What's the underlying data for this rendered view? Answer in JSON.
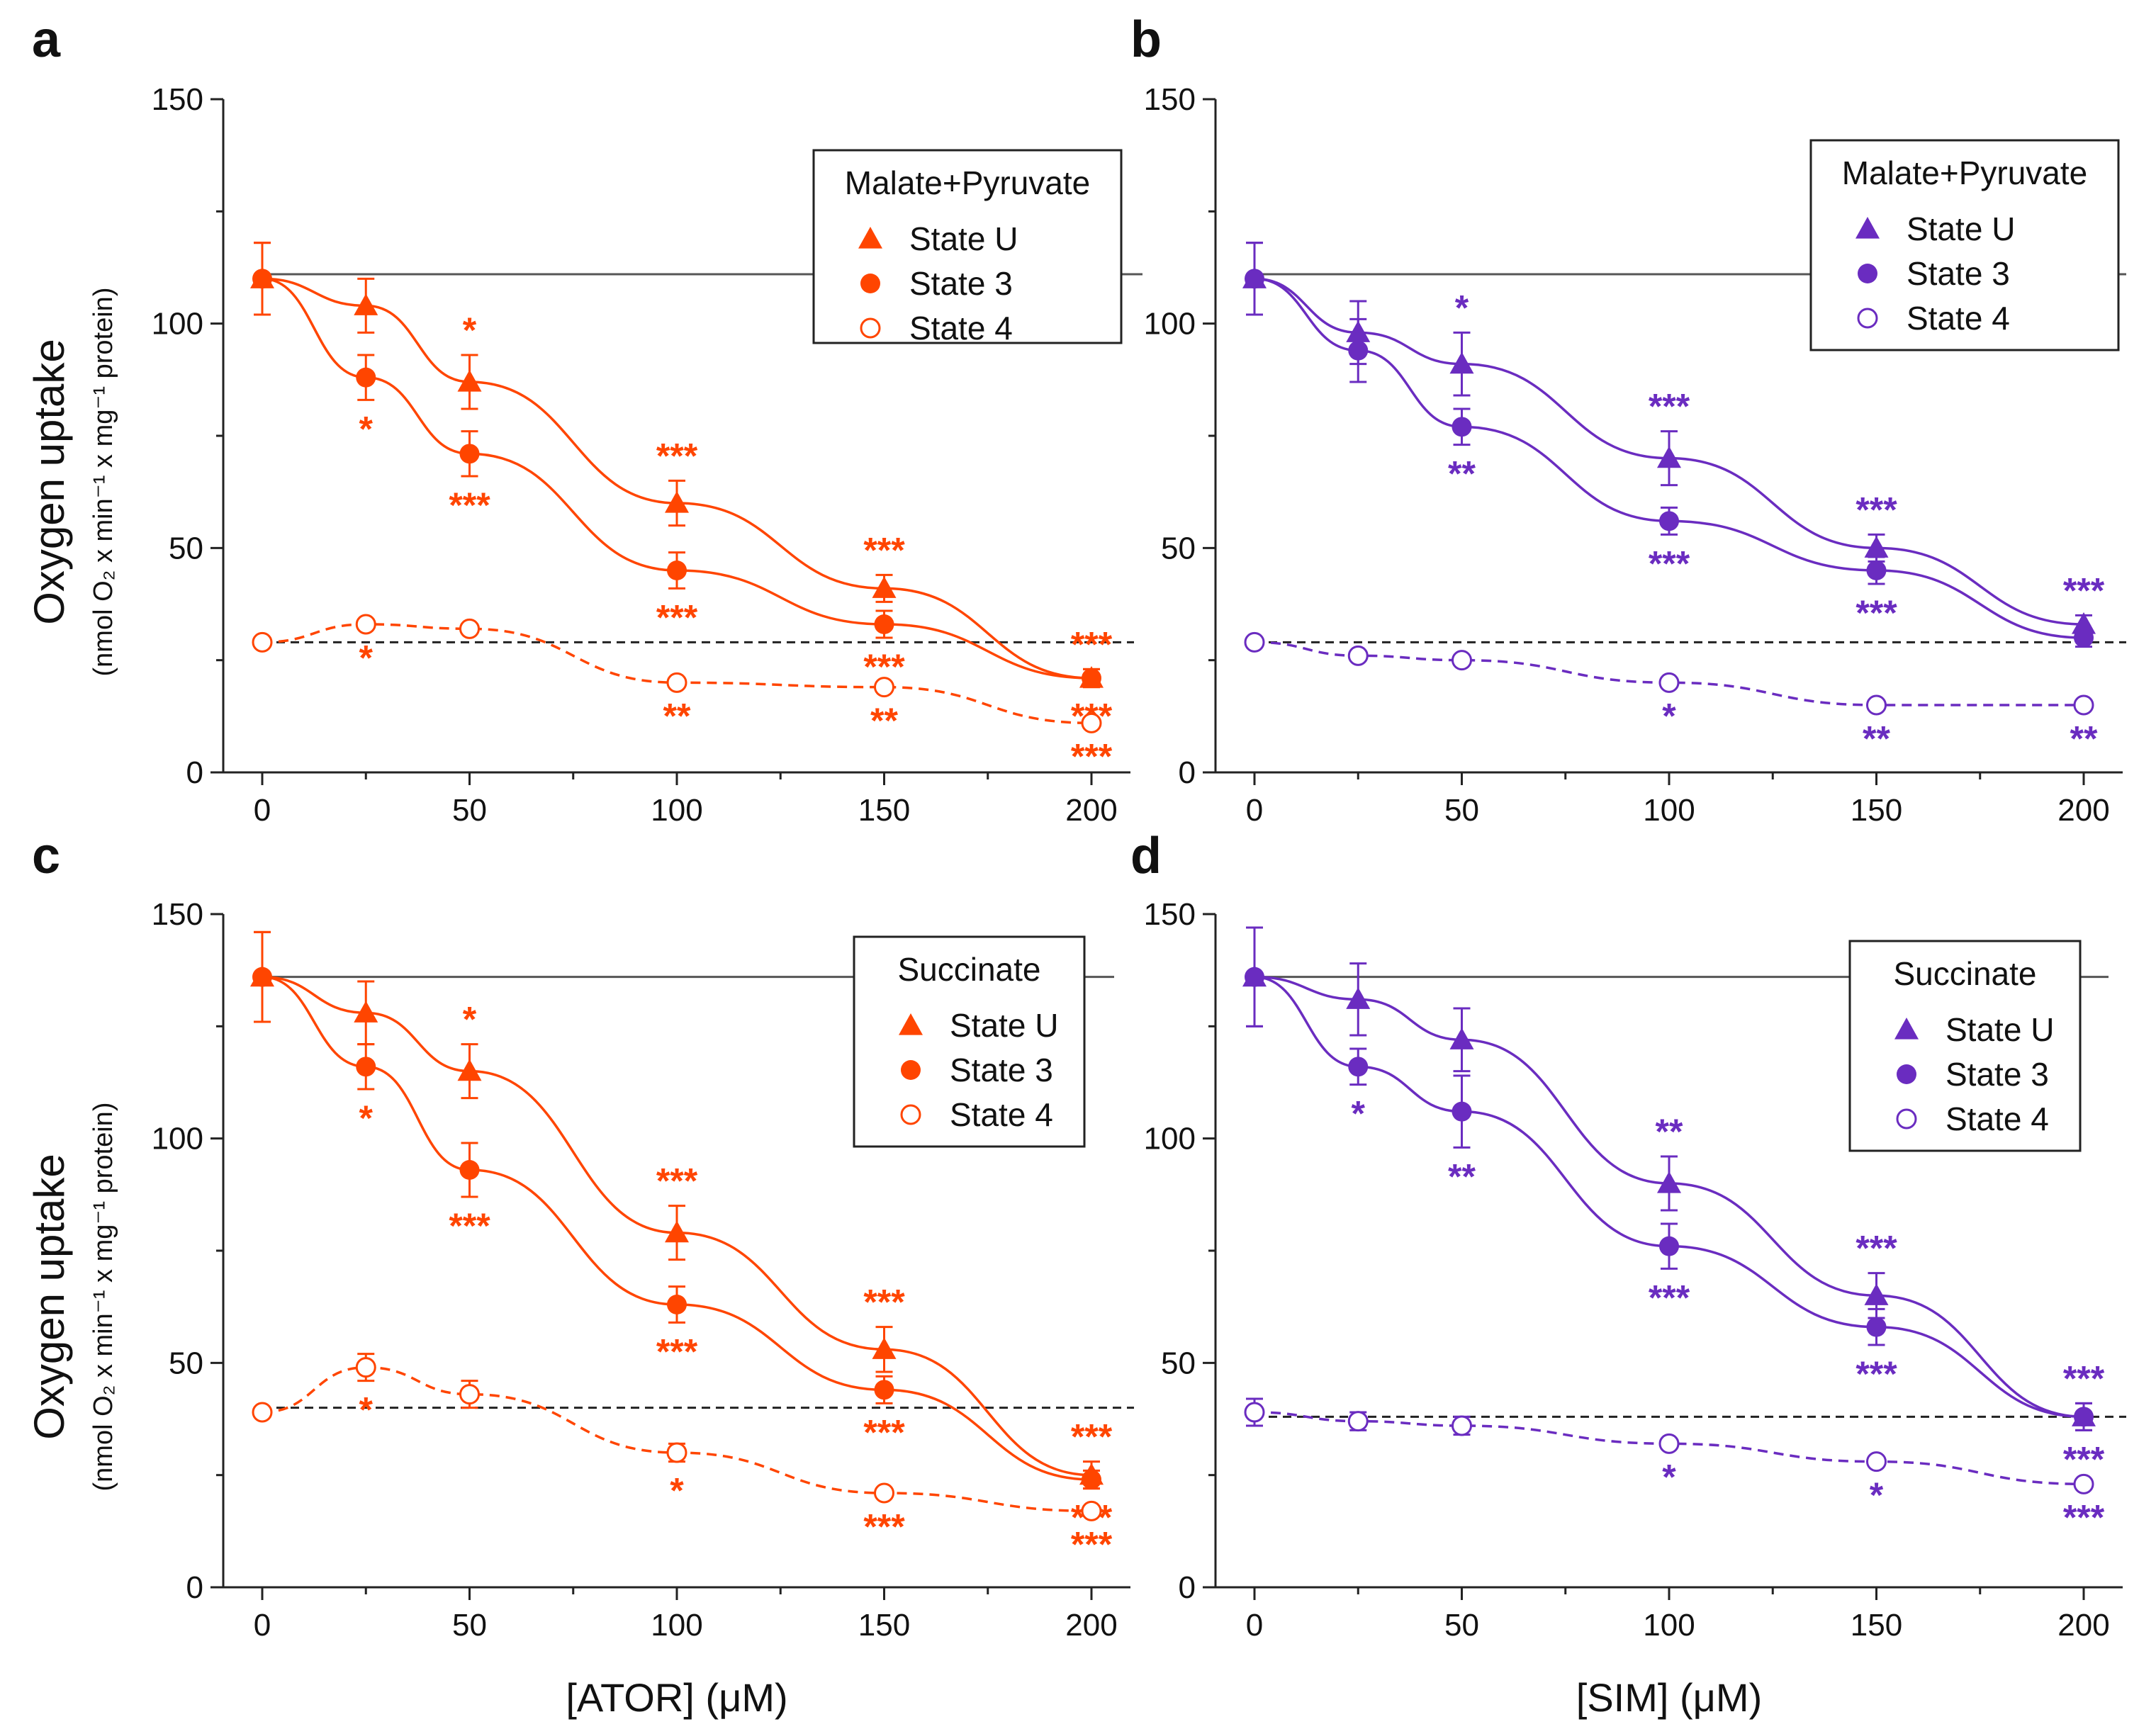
{
  "figure": {
    "ylabel_main": "Oxygen uptake",
    "ylabel_sub": "(nmol O₂ x min⁻¹ x mg⁻¹ protein)"
  },
  "chart_data": [
    {
      "panel": "a",
      "type": "line",
      "color": "#ff4500",
      "xlabel": "[ATOR] (μM)",
      "ylim": [
        0,
        150
      ],
      "yticks": [
        0,
        50,
        100,
        150
      ],
      "x": [
        0,
        25,
        50,
        100,
        150,
        200
      ],
      "xticks": [
        0,
        50,
        100,
        150,
        200
      ],
      "legend_title": "Malate+Pyruvate",
      "reference_line": 111,
      "state4_baseline": 29,
      "series": [
        {
          "name": "State U",
          "marker": "triangle",
          "values": [
            110,
            104,
            87,
            60,
            41,
            21
          ],
          "errors": [
            8,
            6,
            6,
            5,
            3,
            2
          ],
          "stars": [
            "",
            "",
            "*",
            "***",
            "***",
            "***"
          ],
          "star_pos": [
            "",
            "",
            "above",
            "above",
            "above",
            "above"
          ]
        },
        {
          "name": "State 3",
          "marker": "circle",
          "values": [
            110,
            88,
            71,
            45,
            33,
            21
          ],
          "errors": [
            8,
            5,
            5,
            4,
            3,
            2
          ],
          "stars": [
            "",
            "*",
            "***",
            "***",
            "***",
            "***"
          ],
          "star_pos": [
            "",
            "below",
            "below",
            "below",
            "below",
            "below"
          ]
        },
        {
          "name": "State 4",
          "marker": "open-circle",
          "values": [
            29,
            33,
            32,
            20,
            19,
            11
          ],
          "errors": [
            1,
            1,
            1,
            1,
            1,
            1
          ],
          "stars": [
            "",
            "*",
            "",
            "**",
            "**",
            "***"
          ],
          "star_pos": [
            "",
            "below",
            "",
            "below",
            "below",
            "below"
          ]
        }
      ]
    },
    {
      "panel": "b",
      "type": "line",
      "color": "#6a2cc0",
      "xlabel": "[SIM] (μM)",
      "ylim": [
        0,
        150
      ],
      "yticks": [
        0,
        50,
        100,
        150
      ],
      "x": [
        0,
        25,
        50,
        100,
        150,
        200
      ],
      "xticks": [
        0,
        50,
        100,
        150,
        200
      ],
      "legend_title": "Malate+Pyruvate",
      "reference_line": 111,
      "state4_baseline": 29,
      "series": [
        {
          "name": "State U",
          "marker": "triangle",
          "values": [
            110,
            98,
            91,
            70,
            50,
            33
          ],
          "errors": [
            8,
            7,
            7,
            6,
            3,
            2
          ],
          "stars": [
            "",
            "",
            "*",
            "***",
            "***",
            "***"
          ],
          "star_pos": [
            "",
            "",
            "above",
            "above",
            "above",
            "above"
          ]
        },
        {
          "name": "State 3",
          "marker": "circle",
          "values": [
            110,
            94,
            77,
            56,
            45,
            30
          ],
          "errors": [
            8,
            7,
            4,
            3,
            3,
            2
          ],
          "stars": [
            "",
            "",
            "**",
            "***",
            "***",
            ""
          ],
          "star_pos": [
            "",
            "",
            "below",
            "below",
            "below",
            ""
          ]
        },
        {
          "name": "State 4",
          "marker": "open-circle",
          "values": [
            29,
            26,
            25,
            20,
            15,
            15
          ],
          "errors": [
            1,
            1,
            1,
            1,
            1,
            1
          ],
          "stars": [
            "",
            "",
            "",
            "*",
            "**",
            "**"
          ],
          "star_pos": [
            "",
            "",
            "",
            "below",
            "below",
            "below"
          ]
        }
      ]
    },
    {
      "panel": "c",
      "type": "line",
      "color": "#ff4500",
      "xlabel": "[ATOR] (μM)",
      "ylim": [
        0,
        150
      ],
      "yticks": [
        0,
        50,
        100,
        150
      ],
      "x": [
        0,
        25,
        50,
        100,
        150,
        200
      ],
      "xticks": [
        0,
        50,
        100,
        150,
        200
      ],
      "legend_title": "Succinate",
      "reference_line": 136,
      "state4_baseline": 40,
      "series": [
        {
          "name": "State U",
          "marker": "triangle",
          "values": [
            136,
            128,
            115,
            79,
            53,
            25
          ],
          "errors": [
            10,
            7,
            6,
            6,
            5,
            3
          ],
          "stars": [
            "",
            "",
            "*",
            "***",
            "***",
            "***"
          ],
          "star_pos": [
            "",
            "",
            "above",
            "above",
            "above",
            "above"
          ]
        },
        {
          "name": "State 3",
          "marker": "circle",
          "values": [
            136,
            116,
            93,
            63,
            44,
            24
          ],
          "errors": [
            10,
            5,
            6,
            4,
            3,
            2
          ],
          "stars": [
            "",
            "*",
            "***",
            "***",
            "***",
            "***"
          ],
          "star_pos": [
            "",
            "below",
            "below",
            "below",
            "below",
            "below"
          ]
        },
        {
          "name": "State 4",
          "marker": "open-circle",
          "values": [
            39,
            49,
            43,
            30,
            21,
            17
          ],
          "errors": [
            1,
            3,
            3,
            2,
            1,
            1
          ],
          "stars": [
            "",
            "*",
            "",
            "*",
            "***",
            "***"
          ],
          "star_pos": [
            "",
            "below",
            "",
            "below",
            "below",
            "below"
          ]
        }
      ]
    },
    {
      "panel": "d",
      "type": "line",
      "color": "#6a2cc0",
      "xlabel": "[SIM] (μM)",
      "ylim": [
        0,
        150
      ],
      "yticks": [
        0,
        50,
        100,
        150
      ],
      "x": [
        0,
        25,
        50,
        100,
        150,
        200
      ],
      "xticks": [
        0,
        50,
        100,
        150,
        200
      ],
      "legend_title": "Succinate",
      "reference_line": 136,
      "state4_baseline": 38,
      "series": [
        {
          "name": "State U",
          "marker": "triangle",
          "values": [
            136,
            131,
            122,
            90,
            65,
            38
          ],
          "errors": [
            11,
            8,
            7,
            6,
            5,
            3
          ],
          "stars": [
            "",
            "",
            "",
            "**",
            "***",
            "***"
          ],
          "star_pos": [
            "",
            "",
            "",
            "above",
            "above",
            "above"
          ]
        },
        {
          "name": "State 3",
          "marker": "circle",
          "values": [
            136,
            116,
            106,
            76,
            58,
            38
          ],
          "errors": [
            11,
            4,
            8,
            5,
            4,
            3
          ],
          "stars": [
            "",
            "*",
            "**",
            "***",
            "***",
            "***"
          ],
          "star_pos": [
            "",
            "below",
            "below",
            "below",
            "below",
            "below"
          ]
        },
        {
          "name": "State 4",
          "marker": "open-circle",
          "values": [
            39,
            37,
            36,
            32,
            28,
            23
          ],
          "errors": [
            3,
            2,
            2,
            1,
            1,
            1
          ],
          "stars": [
            "",
            "",
            "",
            "*",
            "*",
            "***"
          ],
          "star_pos": [
            "",
            "",
            "",
            "below",
            "below",
            "below"
          ]
        }
      ]
    }
  ]
}
